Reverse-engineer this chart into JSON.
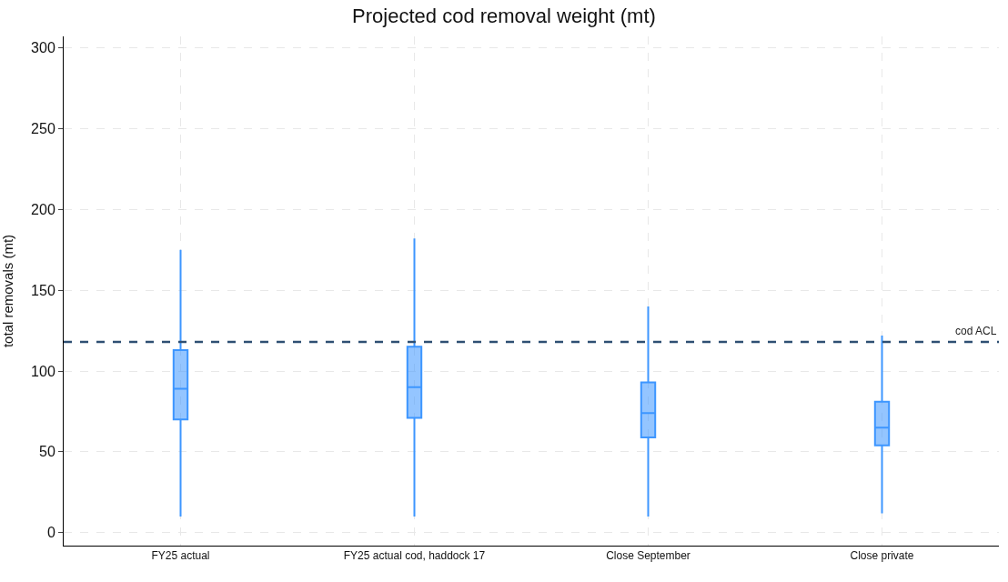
{
  "chart_data": {
    "type": "box",
    "title": "Projected cod removal weight (mt)",
    "ylabel": "total removals (mt)",
    "categories": [
      "FY25 actual",
      "FY25 actual cod, haddock 17",
      "Close September",
      "Close private"
    ],
    "color": "#3d96ff",
    "boxes": [
      {
        "low": 10,
        "q1": 70,
        "median": 89,
        "q3": 113,
        "high": 175
      },
      {
        "low": 10,
        "q1": 71,
        "median": 90,
        "q3": 115,
        "high": 182
      },
      {
        "low": 10,
        "q1": 59,
        "median": 74,
        "q3": 93,
        "high": 140
      },
      {
        "low": 12,
        "q1": 54,
        "median": 65,
        "q3": 81,
        "high": 122
      }
    ],
    "ylim": [
      -8,
      307
    ],
    "yticks": [
      0,
      50,
      100,
      150,
      200,
      250,
      300
    ],
    "grid": true,
    "legend": false,
    "ref_lines": [
      {
        "axis": "y",
        "value": 118,
        "label": "cod ACL",
        "color": "#2e4f73",
        "line_style": "dashed"
      }
    ]
  }
}
